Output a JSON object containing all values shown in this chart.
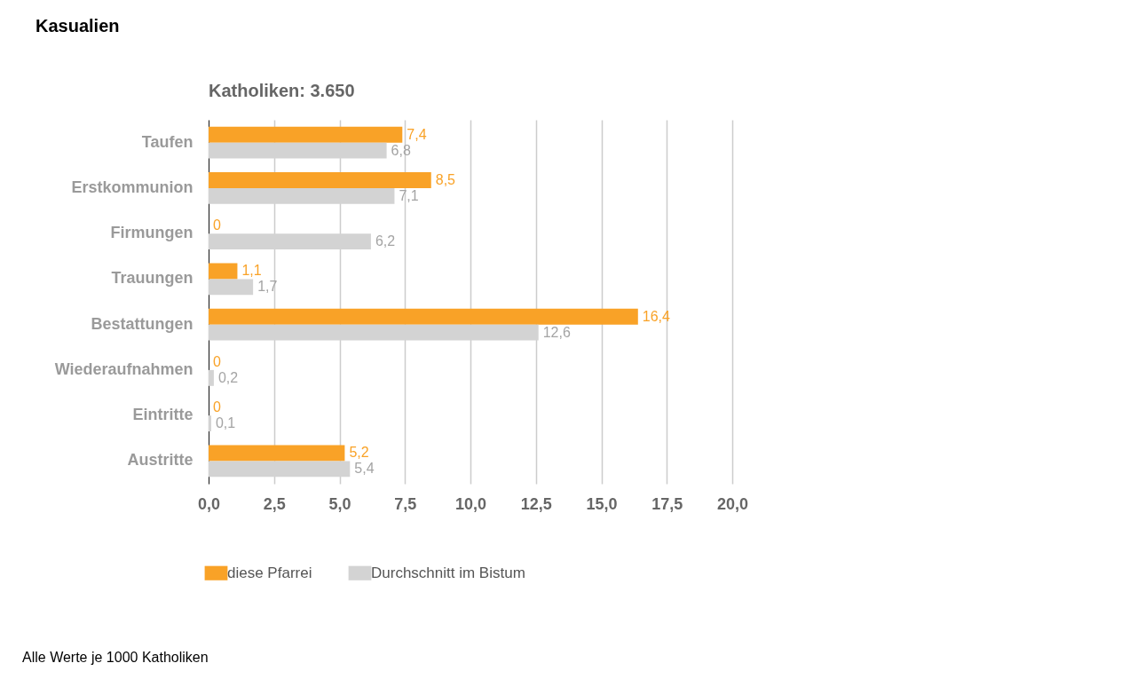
{
  "chart_data": {
    "type": "bar",
    "orientation": "horizontal",
    "title": "Kasualien",
    "subtitle": "Katholiken: 3.650",
    "categories": [
      "Taufen",
      "Erstkommunion",
      "Firmungen",
      "Trauungen",
      "Bestattungen",
      "Wiederaufnahmen",
      "Eintritte",
      "Austritte"
    ],
    "series": [
      {
        "name": "diese Pfarrei",
        "color": "#f9a227",
        "values": [
          7.4,
          8.5,
          0,
          1.1,
          16.4,
          0,
          0,
          5.2
        ],
        "value_labels": [
          "7,4",
          "8,5",
          "0",
          "1,1",
          "16,4",
          "0",
          "0",
          "5,2"
        ]
      },
      {
        "name": "Durchschnitt im Bistum",
        "color": "#d3d3d3",
        "values": [
          6.8,
          7.1,
          6.2,
          1.7,
          12.6,
          0.2,
          0.1,
          5.4
        ],
        "value_labels": [
          "6,8",
          "7,1",
          "6,2",
          "1,7",
          "12,6",
          "0,2",
          "0,1",
          "5,4"
        ]
      }
    ],
    "xlim": [
      0,
      20
    ],
    "xticks": [
      {
        "value": 0,
        "label": "0,0"
      },
      {
        "value": 2.5,
        "label": "2,5"
      },
      {
        "value": 5,
        "label": "5,0"
      },
      {
        "value": 7.5,
        "label": "7,5"
      },
      {
        "value": 10,
        "label": "10,0"
      },
      {
        "value": 12.5,
        "label": "12,5"
      },
      {
        "value": 15,
        "label": "15,0"
      },
      {
        "value": 17.5,
        "label": "17,5"
      },
      {
        "value": 20,
        "label": "20,0"
      }
    ],
    "grid": "x",
    "legend": "bottom",
    "annotations": [
      "Alle Werte je 1000 Katholiken"
    ]
  }
}
